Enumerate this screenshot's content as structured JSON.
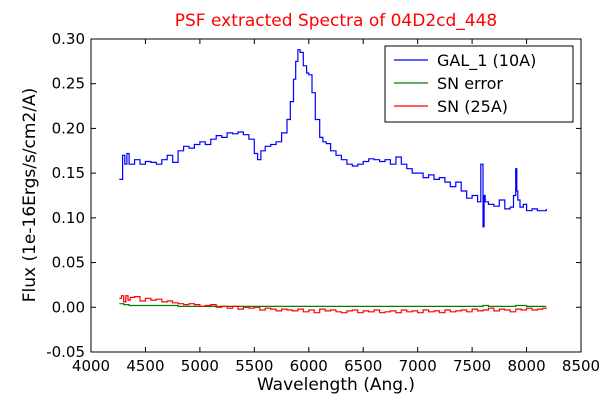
{
  "chart_data": {
    "type": "line",
    "title": "PSF extracted Spectra of 04D2cd_448",
    "title_color": "#ff0000",
    "xlabel": "Wavelength (Ang.)",
    "ylabel": "Flux (1e-16Ergs/s/cm2/A)",
    "xlim": [
      4000,
      8500
    ],
    "ylim": [
      -0.05,
      0.3
    ],
    "xticks": [
      4000,
      4500,
      5000,
      5500,
      6000,
      6500,
      7000,
      7500,
      8000,
      8500
    ],
    "yticks": [
      -0.05,
      0.0,
      0.05,
      0.1,
      0.15,
      0.2,
      0.25,
      0.3
    ],
    "xtick_labels": [
      "4000",
      "4500",
      "5000",
      "5500",
      "6000",
      "6500",
      "7000",
      "7500",
      "8000",
      "8500"
    ],
    "ytick_labels": [
      "-0.05",
      "0.00",
      "0.05",
      "0.10",
      "0.15",
      "0.20",
      "0.25",
      "0.30"
    ],
    "grid": false,
    "legend_position": "top-right",
    "series": [
      {
        "name": "GAL_1 (10A)",
        "color": "#0000ff",
        "step": true,
        "x": [
          4260,
          4290,
          4310,
          4330,
          4350,
          4400,
          4450,
          4500,
          4550,
          4600,
          4650,
          4700,
          4750,
          4800,
          4850,
          4900,
          4950,
          5000,
          5050,
          5100,
          5150,
          5200,
          5250,
          5300,
          5350,
          5400,
          5450,
          5500,
          5530,
          5560,
          5600,
          5650,
          5700,
          5750,
          5800,
          5830,
          5860,
          5880,
          5900,
          5920,
          5950,
          5980,
          6000,
          6030,
          6060,
          6100,
          6130,
          6160,
          6200,
          6250,
          6300,
          6350,
          6400,
          6450,
          6500,
          6550,
          6600,
          6650,
          6700,
          6750,
          6800,
          6850,
          6900,
          6950,
          7000,
          7050,
          7100,
          7150,
          7200,
          7250,
          7300,
          7350,
          7400,
          7450,
          7500,
          7550,
          7580,
          7600,
          7610,
          7620,
          7650,
          7700,
          7750,
          7800,
          7850,
          7880,
          7900,
          7910,
          7920,
          7940,
          7970,
          8000,
          8050,
          8100,
          8150,
          8180
        ],
        "y": [
          0.143,
          0.17,
          0.16,
          0.172,
          0.16,
          0.165,
          0.16,
          0.163,
          0.162,
          0.16,
          0.165,
          0.17,
          0.162,
          0.175,
          0.18,
          0.178,
          0.182,
          0.185,
          0.182,
          0.188,
          0.192,
          0.19,
          0.195,
          0.194,
          0.196,
          0.193,
          0.188,
          0.172,
          0.165,
          0.175,
          0.18,
          0.182,
          0.185,
          0.195,
          0.21,
          0.23,
          0.255,
          0.275,
          0.288,
          0.285,
          0.27,
          0.262,
          0.26,
          0.24,
          0.21,
          0.19,
          0.185,
          0.183,
          0.175,
          0.17,
          0.165,
          0.16,
          0.158,
          0.16,
          0.163,
          0.166,
          0.165,
          0.163,
          0.165,
          0.16,
          0.168,
          0.16,
          0.155,
          0.15,
          0.15,
          0.145,
          0.148,
          0.143,
          0.145,
          0.14,
          0.135,
          0.14,
          0.13,
          0.122,
          0.125,
          0.118,
          0.16,
          0.09,
          0.125,
          0.118,
          0.115,
          0.113,
          0.12,
          0.11,
          0.112,
          0.125,
          0.155,
          0.13,
          0.12,
          0.112,
          0.115,
          0.108,
          0.11,
          0.108,
          0.108,
          0.11
        ]
      },
      {
        "name": "SN error",
        "color": "#008000",
        "step": true,
        "x": [
          4260,
          4300,
          4350,
          4400,
          4500,
          4600,
          4800,
          5000,
          5200,
          5400,
          5600,
          5800,
          6000,
          6200,
          6400,
          6600,
          6800,
          7000,
          7200,
          7400,
          7500,
          7600,
          7650,
          7700,
          7800,
          7900,
          8000,
          8100,
          8180
        ],
        "y": [
          0.004,
          0.003,
          0.002,
          0.002,
          0.002,
          0.002,
          0.001,
          0.001,
          0.001,
          0.001,
          0.001,
          0.001,
          0.001,
          0.001,
          0.001,
          0.001,
          0.001,
          0.001,
          0.001,
          0.001,
          0.001,
          0.002,
          0.001,
          0.001,
          0.001,
          0.002,
          0.001,
          0.001,
          0.001
        ]
      },
      {
        "name": "SN (25A)",
        "color": "#ff0000",
        "step": true,
        "x": [
          4260,
          4280,
          4300,
          4320,
          4340,
          4360,
          4400,
          4450,
          4500,
          4550,
          4600,
          4650,
          4700,
          4750,
          4800,
          4850,
          4900,
          4950,
          5000,
          5050,
          5100,
          5150,
          5200,
          5250,
          5300,
          5350,
          5400,
          5450,
          5500,
          5550,
          5600,
          5650,
          5700,
          5750,
          5800,
          5850,
          5900,
          5950,
          6000,
          6050,
          6100,
          6150,
          6200,
          6250,
          6300,
          6350,
          6400,
          6450,
          6500,
          6550,
          6600,
          6650,
          6700,
          6750,
          6800,
          6850,
          6900,
          6950,
          7000,
          7050,
          7100,
          7150,
          7200,
          7250,
          7300,
          7350,
          7400,
          7450,
          7500,
          7550,
          7600,
          7650,
          7700,
          7750,
          7800,
          7850,
          7900,
          7950,
          8000,
          8050,
          8100,
          8150,
          8180
        ],
        "y": [
          0.01,
          0.013,
          0.006,
          0.013,
          0.008,
          0.011,
          0.012,
          0.007,
          0.01,
          0.008,
          0.009,
          0.006,
          0.007,
          0.005,
          0.004,
          0.003,
          0.004,
          0.003,
          0.001,
          0.002,
          0.003,
          0.0,
          0.001,
          -0.001,
          0.001,
          -0.002,
          0.0,
          -0.001,
          0.0,
          -0.003,
          -0.001,
          -0.002,
          -0.004,
          -0.002,
          -0.003,
          -0.004,
          -0.002,
          -0.005,
          -0.003,
          -0.006,
          -0.002,
          -0.004,
          -0.003,
          -0.005,
          -0.006,
          -0.004,
          -0.003,
          -0.006,
          -0.004,
          -0.005,
          -0.003,
          -0.006,
          -0.005,
          -0.004,
          -0.006,
          -0.003,
          -0.005,
          -0.004,
          -0.006,
          -0.003,
          -0.005,
          -0.004,
          -0.006,
          -0.003,
          -0.005,
          -0.004,
          -0.003,
          -0.005,
          -0.002,
          -0.004,
          -0.003,
          -0.001,
          -0.004,
          -0.002,
          -0.003,
          -0.005,
          -0.002,
          -0.003,
          -0.001,
          -0.003,
          -0.002,
          -0.001,
          -0.002
        ]
      }
    ]
  }
}
